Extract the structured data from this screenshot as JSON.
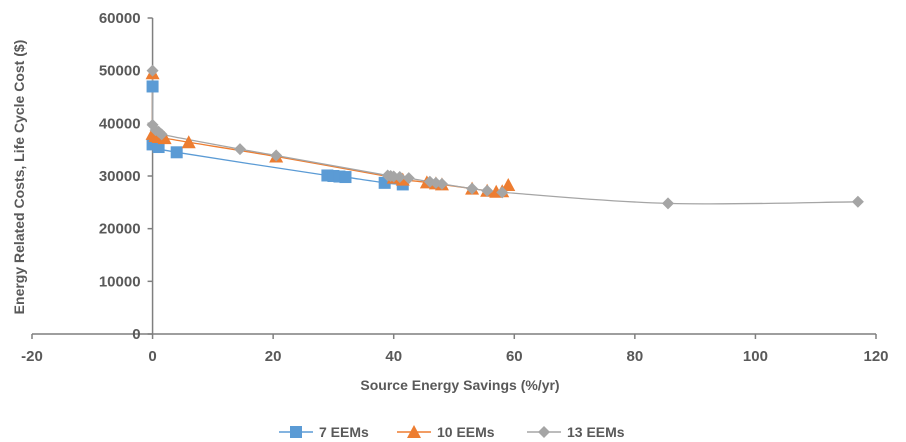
{
  "chart_data": {
    "type": "scatter",
    "title": "",
    "xlabel": "Source Energy Savings (%/yr)",
    "ylabel": "Energy Related Costs, Life Cycle Cost ($)",
    "xlim": [
      -20,
      120
    ],
    "ylim": [
      0,
      60000
    ],
    "xticks": [
      "-20",
      "0",
      "20",
      "40",
      "60",
      "80",
      "100",
      "120"
    ],
    "yticks": [
      "0",
      "10000",
      "20000",
      "30000",
      "40000",
      "50000",
      "60000"
    ],
    "grid": false,
    "legend_position": "bottom",
    "series": [
      {
        "name": "7 EEMs",
        "color": "#5b9bd5",
        "marker": "square",
        "x": [
          0,
          0,
          0.5,
          1,
          4,
          29,
          30,
          31,
          32,
          38.5,
          41.5
        ],
        "y": [
          47000,
          36000,
          37000,
          35500,
          34500,
          30100,
          30000,
          29900,
          29800,
          28700,
          28400
        ]
      },
      {
        "name": "10 EEMs",
        "color": "#ed7d31",
        "marker": "triangle",
        "x": [
          0,
          0,
          0.5,
          1,
          2,
          6,
          20.5,
          40,
          41.5,
          45.5,
          47,
          48,
          53,
          55.5,
          57,
          58,
          59
        ],
        "y": [
          49500,
          38000,
          37600,
          37400,
          37200,
          36400,
          33700,
          29700,
          29300,
          28800,
          28600,
          28400,
          27600,
          27200,
          27000,
          27100,
          28300
        ]
      },
      {
        "name": "13 EEMs",
        "color": "#a5a5a5",
        "marker": "diamond",
        "x": [
          0,
          0,
          0.5,
          1,
          1.5,
          14.5,
          20.5,
          39,
          39.5,
          40,
          41,
          42.5,
          46,
          47,
          48,
          53,
          55.5,
          58,
          85.5,
          117
        ],
        "y": [
          50000,
          39700,
          38700,
          38400,
          37900,
          35100,
          33900,
          30100,
          30000,
          29900,
          29800,
          29600,
          28900,
          28700,
          28500,
          27600,
          27200,
          26900,
          24800,
          25100
        ]
      }
    ]
  }
}
